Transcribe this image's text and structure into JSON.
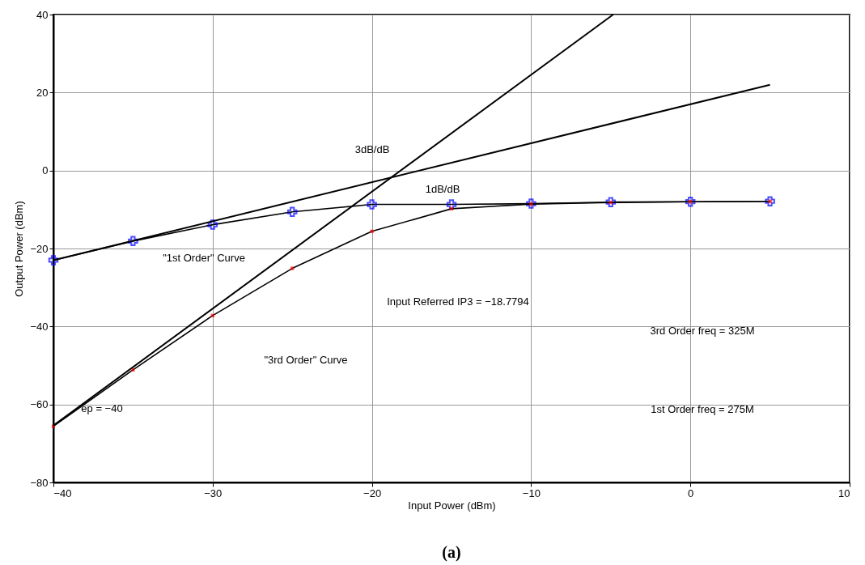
{
  "chart_data": {
    "type": "line",
    "xlabel": "Input Power (dBm)",
    "ylabel": "Output Power (dBm)",
    "xlim": [
      -40,
      10
    ],
    "ylim": [
      -80,
      40
    ],
    "xticks": [
      -40,
      -30,
      -20,
      -10,
      0,
      10
    ],
    "yticks": [
      -80,
      -60,
      -40,
      -20,
      0,
      20,
      40
    ],
    "grid": true,
    "series": [
      {
        "x": [
          -40,
          -35,
          -30,
          -25,
          -20,
          -15,
          -10,
          -5,
          0,
          5
        ],
        "values": [
          -23.0,
          -18.1,
          -13.9,
          -10.6,
          -8.7,
          -8.7,
          -8.5,
          -8.1,
          -8.0,
          -7.9
        ],
        "color": "#0000ff",
        "marker": "cross"
      },
      {
        "x": [
          -40,
          -35,
          -30,
          -25,
          -20,
          -15,
          -10,
          -5,
          0,
          5
        ],
        "values": [
          -65.6,
          -51.1,
          -37.2,
          -25.1,
          -15.6,
          -9.8,
          -8.6,
          -8.2,
          -8.0,
          -7.9
        ],
        "color": "#ff0000",
        "marker": "square"
      },
      {
        "x": [
          -40,
          5
        ],
        "values": [
          -23,
          22
        ],
        "color": "#000000",
        "marker": "none"
      },
      {
        "x": [
          -40,
          -4.85
        ],
        "values": [
          -65.4,
          40
        ],
        "color": "#000000",
        "marker": "none"
      }
    ],
    "annotations": [
      "3dB/dB",
      "1dB/dB",
      "\"1st Order\" Curve",
      "\"3rd Order\" Curve",
      "Input Referred IP3 = −18.7794",
      "3rd Order freq = 325M",
      "1st Order freq = 275M",
      "ep = −40",
      "(a)"
    ]
  }
}
